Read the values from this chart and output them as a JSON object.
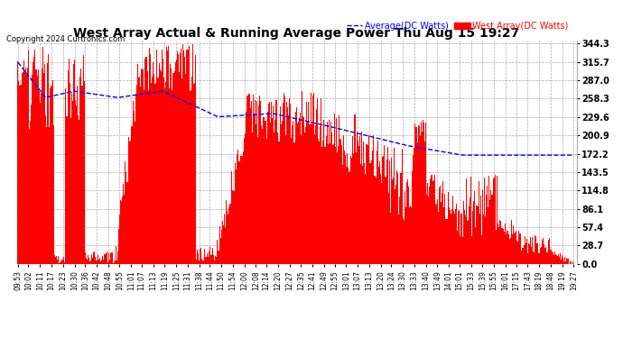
{
  "title": "West Array Actual & Running Average Power Thu Aug 15 19:27",
  "copyright": "Copyright 2024 Curtronics.com",
  "legend_average": "Average(DC Watts)",
  "legend_west": "West Array(DC Watts)",
  "ylabel_values": [
    344.3,
    315.7,
    287.0,
    258.3,
    229.6,
    200.9,
    172.2,
    143.5,
    114.8,
    86.1,
    57.4,
    28.7,
    0.0
  ],
  "ymax": 344.3,
  "ymin": 0.0,
  "bar_color": "#ff0000",
  "avg_color": "#0000ff",
  "background_color": "#ffffff",
  "grid_color": "#aaaaaa",
  "title_color": "#000000",
  "copyright_color": "#000000",
  "legend_avg_color": "#0000ff",
  "legend_west_color": "#ff0000",
  "xtick_labels": [
    "09:53",
    "10:02",
    "10:11",
    "10:17",
    "10:23",
    "10:30",
    "10:36",
    "10:42",
    "10:48",
    "10:55",
    "11:01",
    "11:07",
    "11:13",
    "11:19",
    "11:25",
    "11:31",
    "11:38",
    "11:44",
    "11:50",
    "11:54",
    "12:00",
    "12:08",
    "12:14",
    "12:20",
    "12:27",
    "12:35",
    "12:41",
    "12:49",
    "12:55",
    "13:01",
    "13:07",
    "13:13",
    "13:20",
    "13:24",
    "13:30",
    "13:33",
    "13:40",
    "13:49",
    "14:01",
    "15:01",
    "15:33",
    "15:39",
    "15:55",
    "16:01",
    "17:15",
    "17:43",
    "18:19",
    "18:48",
    "19:19",
    "19:27"
  ]
}
